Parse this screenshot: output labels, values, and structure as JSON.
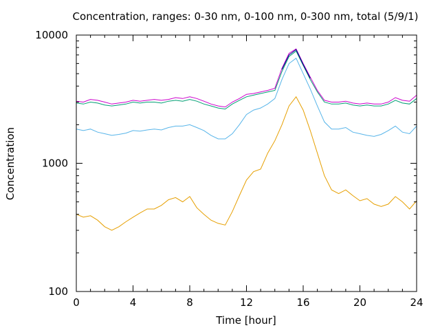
{
  "chart_data": {
    "type": "line",
    "title": "Concentration, ranges: 0-30 nm, 0-100 nm, 0-300 nm, total (5/9/1)",
    "xlabel": "Time [hour]",
    "ylabel": "Concentration",
    "xlim": [
      0,
      24
    ],
    "ylim": [
      100,
      10000
    ],
    "yscale": "log",
    "grid": false,
    "legend": "none",
    "x_ticks": [
      "0",
      "4",
      "8",
      "12",
      "16",
      "20",
      "24"
    ],
    "y_ticks": [
      "100",
      "1000",
      "10000"
    ],
    "x": [
      0,
      0.5,
      1,
      1.5,
      2,
      2.5,
      3,
      3.5,
      4,
      4.5,
      5,
      5.5,
      6,
      6.5,
      7,
      7.5,
      8,
      8.5,
      9,
      9.5,
      10,
      10.5,
      11,
      11.5,
      12,
      12.5,
      13,
      13.5,
      14,
      14.5,
      15,
      15.5,
      16,
      16.5,
      17,
      17.5,
      18,
      18.5,
      19,
      19.5,
      20,
      20.5,
      21,
      21.5,
      22,
      22.5,
      23,
      23.5,
      24
    ],
    "series": [
      {
        "color": "#e69f00",
        "values": [
          400,
          380,
          390,
          360,
          320,
          300,
          320,
          350,
          380,
          410,
          440,
          440,
          470,
          520,
          540,
          500,
          550,
          450,
          400,
          360,
          340,
          330,
          420,
          560,
          740,
          860,
          900,
          1200,
          1500,
          2000,
          2800,
          3300,
          2600,
          1800,
          1200,
          800,
          620,
          580,
          620,
          560,
          510,
          530,
          480,
          460,
          480,
          550,
          500,
          440,
          510
        ]
      },
      {
        "color": "#56b4e9",
        "values": [
          1850,
          1800,
          1850,
          1750,
          1700,
          1650,
          1680,
          1720,
          1800,
          1780,
          1820,
          1850,
          1820,
          1900,
          1950,
          1950,
          2000,
          1900,
          1800,
          1650,
          1550,
          1550,
          1700,
          2000,
          2400,
          2600,
          2700,
          2900,
          3200,
          4500,
          6000,
          6600,
          5000,
          3800,
          2800,
          2100,
          1850,
          1850,
          1900,
          1750,
          1700,
          1650,
          1620,
          1680,
          1800,
          1950,
          1750,
          1700,
          1950
        ]
      },
      {
        "color": "#009e73",
        "values": [
          2950,
          2900,
          3000,
          2950,
          2850,
          2800,
          2850,
          2900,
          3000,
          2950,
          3000,
          3000,
          2950,
          3050,
          3100,
          3050,
          3150,
          3050,
          2900,
          2800,
          2700,
          2650,
          2900,
          3100,
          3300,
          3400,
          3500,
          3600,
          3700,
          5200,
          6800,
          7500,
          5800,
          4500,
          3600,
          3000,
          2900,
          2900,
          2950,
          2850,
          2800,
          2850,
          2800,
          2800,
          2900,
          3100,
          2950,
          2900,
          3200
        ]
      },
      {
        "color": "#cc00cc",
        "values": [
          3050,
          3000,
          3150,
          3100,
          3000,
          2900,
          2950,
          3000,
          3100,
          3050,
          3100,
          3150,
          3100,
          3150,
          3250,
          3200,
          3300,
          3200,
          3050,
          2900,
          2800,
          2750,
          3000,
          3200,
          3450,
          3500,
          3600,
          3700,
          3850,
          5500,
          7200,
          7800,
          6000,
          4700,
          3700,
          3100,
          3000,
          3000,
          3050,
          2950,
          2900,
          2950,
          2900,
          2900,
          3000,
          3250,
          3100,
          3050,
          3400
        ]
      },
      {
        "color": "#00008b",
        "values": [
          null,
          null,
          null,
          null,
          null,
          null,
          null,
          null,
          null,
          null,
          null,
          null,
          null,
          null,
          null,
          null,
          null,
          null,
          null,
          null,
          null,
          null,
          null,
          null,
          null,
          null,
          null,
          null,
          null,
          5400,
          7000,
          7700,
          5900,
          4600,
          null,
          null,
          null,
          null,
          null,
          null,
          null,
          null,
          null,
          null,
          null,
          null,
          null,
          null,
          null
        ]
      }
    ]
  }
}
